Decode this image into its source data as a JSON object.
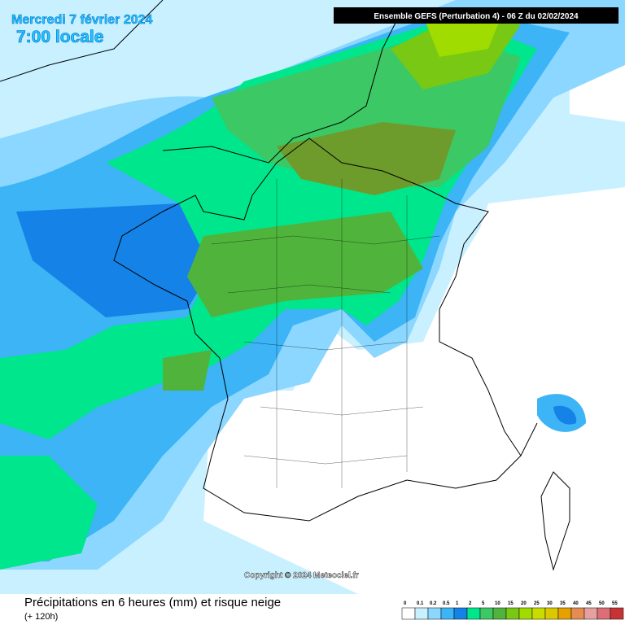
{
  "header": {
    "date": "Mercredi 7 février 2024",
    "time": "7:00 locale",
    "model": "Ensemble GEFS  (Perturbation 4)  -  06 Z du 02/02/2024"
  },
  "copyright": "Copyright © 2024 Meteociel.fr",
  "footer": {
    "title": "Précipitations en 6 heures (mm) et risque neige",
    "range": "(+ 120h)"
  },
  "legend": {
    "items": [
      {
        "label": "0",
        "color": "#ffffff"
      },
      {
        "label": "0.1",
        "color": "#c8f0ff"
      },
      {
        "label": "0.2",
        "color": "#8cd7ff"
      },
      {
        "label": "0.5",
        "color": "#3cb4f5"
      },
      {
        "label": "1",
        "color": "#1482e6"
      },
      {
        "label": "2",
        "color": "#00e68c"
      },
      {
        "label": "5",
        "color": "#3cc864"
      },
      {
        "label": "10",
        "color": "#50b43c"
      },
      {
        "label": "15",
        "color": "#78c814"
      },
      {
        "label": "20",
        "color": "#a0dc00"
      },
      {
        "label": "25",
        "color": "#c8dc00"
      },
      {
        "label": "30",
        "color": "#dcc800"
      },
      {
        "label": "35",
        "color": "#e6a000"
      },
      {
        "label": "40",
        "color": "#e68c50"
      },
      {
        "label": "45",
        "color": "#e6a0a0"
      },
      {
        "label": "50",
        "color": "#dc6e78"
      },
      {
        "label": "55",
        "color": "#c83232"
      }
    ]
  }
}
